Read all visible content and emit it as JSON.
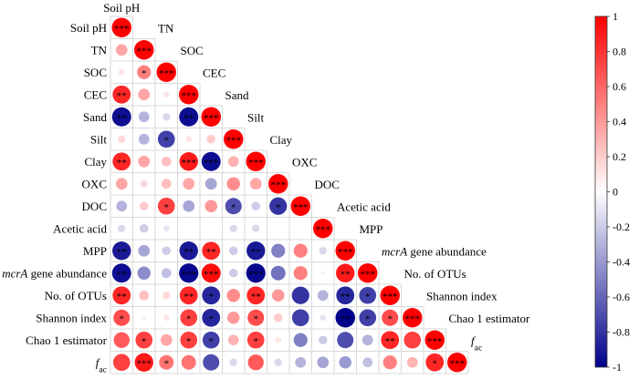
{
  "chart_data": {
    "type": "heatmap",
    "title": "",
    "variables": [
      "Soil pH",
      "TN",
      "SOC",
      "CEC",
      "Sand",
      "Silt",
      "Clay",
      "OXC",
      "DOC",
      "Acetic acid",
      "MPP",
      "mcrA gene abundance",
      "No. of OTUs",
      "Shannon index",
      "Chao 1 estimator",
      "f_ac"
    ],
    "variable_display": [
      {
        "main": "Soil pH",
        "italic": "",
        "sub": ""
      },
      {
        "main": "TN",
        "italic": "",
        "sub": ""
      },
      {
        "main": "SOC",
        "italic": "",
        "sub": ""
      },
      {
        "main": "CEC",
        "italic": "",
        "sub": ""
      },
      {
        "main": "Sand",
        "italic": "",
        "sub": ""
      },
      {
        "main": "Silt",
        "italic": "",
        "sub": ""
      },
      {
        "main": "Clay",
        "italic": "",
        "sub": ""
      },
      {
        "main": "OXC",
        "italic": "",
        "sub": ""
      },
      {
        "main": "DOC",
        "italic": "",
        "sub": ""
      },
      {
        "main": "Acetic acid",
        "italic": "",
        "sub": ""
      },
      {
        "main": "MPP",
        "italic": "",
        "sub": ""
      },
      {
        "main": " gene abundance",
        "italic": "mcrA",
        "sub": ""
      },
      {
        "main": "No. of OTUs",
        "italic": "",
        "sub": ""
      },
      {
        "main": "Shannon index",
        "italic": "",
        "sub": ""
      },
      {
        "main": "Chao 1 estimator",
        "italic": "",
        "sub": ""
      },
      {
        "main": "",
        "italic": "f",
        "sub": "ac"
      }
    ],
    "correlations": [
      [
        1.0
      ],
      [
        0.35,
        1.0
      ],
      [
        0.1,
        0.5,
        1.0
      ],
      [
        0.85,
        0.35,
        0.1,
        1.0
      ],
      [
        -0.95,
        -0.3,
        -0.15,
        -0.95,
        1.0
      ],
      [
        0.15,
        -0.3,
        -0.75,
        0.1,
        0.2,
        1.0
      ],
      [
        0.85,
        0.35,
        0.25,
        0.9,
        -0.95,
        0.3,
        1.0
      ],
      [
        0.35,
        0.15,
        0.25,
        0.35,
        -0.35,
        0.45,
        0.35,
        1.0
      ],
      [
        -0.3,
        0.2,
        0.75,
        -0.35,
        0.4,
        -0.7,
        -0.2,
        -0.8,
        1.0
      ],
      [
        -0.15,
        -0.2,
        -0.1,
        0.0,
        0.0,
        -0.15,
        -0.15,
        0.0,
        0.0,
        1.0
      ],
      [
        -0.9,
        -0.35,
        -0.2,
        -0.9,
        0.85,
        -0.2,
        -0.9,
        -0.5,
        0.5,
        -0.15,
        1.0
      ],
      [
        -0.95,
        -0.45,
        -0.25,
        -0.97,
        0.95,
        -0.2,
        -0.97,
        -0.55,
        0.5,
        -0.05,
        0.9,
        1.0
      ],
      [
        0.85,
        0.25,
        0.15,
        0.85,
        -0.85,
        0.45,
        0.85,
        0.4,
        -0.8,
        -0.3,
        -0.85,
        -0.75,
        1.0
      ],
      [
        0.7,
        -0.05,
        0.1,
        0.75,
        -0.85,
        0.4,
        0.7,
        0.2,
        -0.75,
        -0.1,
        -1.0,
        -0.75,
        0.7,
        1.0
      ],
      [
        0.65,
        0.75,
        0.35,
        0.75,
        -0.75,
        0.3,
        0.75,
        0.1,
        -0.5,
        -0.2,
        -0.7,
        -0.3,
        0.85,
        0.75,
        1.0
      ],
      [
        0.75,
        0.9,
        0.55,
        0.55,
        -0.7,
        -0.15,
        0.65,
        -0.15,
        -0.3,
        -0.35,
        -0.4,
        -0.25,
        0.5,
        0.3,
        0.85,
        1.0
      ]
    ],
    "significance": [
      [
        "***"
      ],
      [
        "",
        "***"
      ],
      [
        "",
        "*",
        "***"
      ],
      [
        "**",
        "",
        "",
        "***"
      ],
      [
        "**",
        "",
        "",
        "**",
        "***"
      ],
      [
        "",
        "",
        "*",
        "",
        "",
        "***"
      ],
      [
        "**",
        "",
        "",
        "***",
        "***",
        "",
        "***"
      ],
      [
        "",
        "",
        "",
        "",
        "",
        "",
        "",
        "***"
      ],
      [
        "",
        "",
        "*",
        "",
        "",
        "*",
        "",
        "*",
        "***"
      ],
      [
        "",
        "",
        "",
        "",
        "",
        "",
        "",
        "",
        "",
        "***"
      ],
      [
        "**",
        "",
        "",
        "**",
        "**",
        "",
        "**",
        "",
        "",
        "",
        "***"
      ],
      [
        "**",
        "",
        "",
        "***",
        "***",
        "",
        "***",
        "",
        "",
        "",
        "**",
        "***"
      ],
      [
        "**",
        "",
        "",
        "**",
        "*",
        "",
        "**",
        "",
        "",
        "",
        "**",
        "*",
        "***"
      ],
      [
        "*",
        "",
        "",
        "*",
        "*",
        "",
        "*",
        "",
        "",
        "",
        "**",
        "*",
        "*",
        "***"
      ],
      [
        "",
        "*",
        "",
        "*",
        "*",
        "",
        "*",
        "",
        "",
        "",
        "",
        "",
        "**",
        "",
        "***"
      ],
      [
        "",
        "***",
        "*",
        "",
        "",
        "",
        "",
        "",
        "",
        "",
        "",
        "",
        "",
        "",
        "*",
        "***"
      ]
    ],
    "colorbar": {
      "ticks": [
        1,
        0.8,
        0.6,
        0.4,
        0.2,
        0,
        -0.2,
        -0.4,
        -0.6,
        -0.8,
        -1
      ],
      "tick_labels": [
        "1",
        "0.8",
        "0.6",
        "0.4",
        "0.2",
        "0",
        "-0.2",
        "-0.4",
        "-0.6",
        "-0.8",
        "-1"
      ],
      "range": [
        -1,
        1
      ]
    },
    "colors": {
      "positive": "#ff0000",
      "neutral": "#ffffff",
      "negative": "#00008b",
      "grid": "#d9d9d9",
      "text": "#000000"
    },
    "grid": true,
    "legend": "right"
  }
}
